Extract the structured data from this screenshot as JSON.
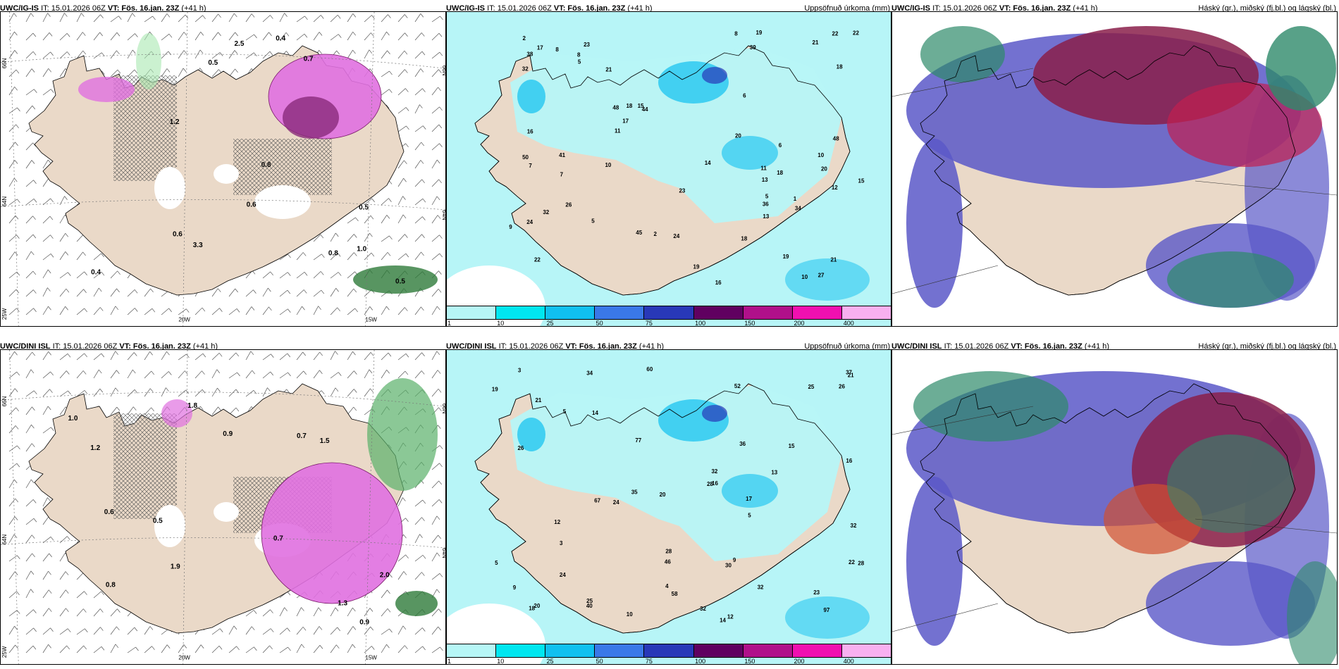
{
  "panels": [
    {
      "model": "UWC/IG-IS",
      "it": "IT: 15.01.2026 06Z",
      "vt_label": "VT:",
      "vt": "Fös. 16.jan. 23Z",
      "lead": "(+41 h)",
      "right": ""
    },
    {
      "model": "UWC/IG-IS",
      "it": "IT: 15.01.2026 06Z",
      "vt_label": "VT:",
      "vt": "Fös. 16.jan. 23Z",
      "lead": "(+41 h)",
      "right": "Uppsöfnuð úrkoma (mm)"
    },
    {
      "model": "UWC/IG-IS",
      "it": "IT: 15.01.2026 06Z",
      "vt_label": "VT:",
      "vt": "Fös. 16.jan. 23Z",
      "lead": "(+41 h)",
      "right": "Háský (gr.), miðský (fj.bl.) og lágský (bl.)"
    },
    {
      "model": "UWC/DINI ISL",
      "it": "IT: 15.01.2026 06Z",
      "vt_label": "VT:",
      "vt": "Fös. 16.jan. 23Z",
      "lead": "(+41 h)",
      "right": ""
    },
    {
      "model": "UWC/DINI ISL",
      "it": "IT: 15.01.2026 06Z",
      "vt_label": "VT:",
      "vt": "Fös. 16.jan. 23Z",
      "lead": "(+41 h)",
      "right": "Uppsöfnuð úrkoma (mm)"
    },
    {
      "model": "UWC/DINI ISL",
      "it": "IT: 15.01.2026 06Z",
      "vt_label": "VT:",
      "vt": "Fös. 16.jan. 23Z",
      "lead": "(+41 h)",
      "right": "Háský (gr.), miðský (fj.bl.) og lágský (bl.)"
    }
  ],
  "grid_labels": {
    "lat66": "66N",
    "lat64": "64N",
    "lon25": "25W",
    "lon20": "20W",
    "lon15": "15W"
  },
  "colorbar": {
    "ticks": [
      "1",
      "10",
      "25",
      "50",
      "75",
      "100",
      "150",
      "200",
      "400"
    ],
    "colors": [
      "#b6f6f6",
      "#00e6f0",
      "#10c0f0",
      "#3a78e8",
      "#2838b8",
      "#600060",
      "#b0108a",
      "#f010b0",
      "#f8b0f0"
    ]
  },
  "snow_values_top": [
    "0.4",
    "0.5",
    "0.8",
    "0.6",
    "0.5",
    "0.4",
    "1.0",
    "0.7",
    "0.8",
    "0.6",
    "0.5",
    "1.2",
    "3.3",
    "2.5"
  ],
  "snow_values_bottom": [
    "0.9",
    "0.6",
    "0.7",
    "1.0",
    "2.0",
    "1.2",
    "0.8",
    "0.5",
    "1.5",
    "0.9",
    "0.7",
    "1.3",
    "1.9",
    "1.8"
  ],
  "precip_top": [
    "13",
    "20",
    "22",
    "23",
    "44",
    "19",
    "24",
    "39",
    "48",
    "16",
    "32",
    "50",
    "38",
    "21",
    "45",
    "48",
    "23",
    "14",
    "15",
    "26",
    "22",
    "21",
    "11",
    "12",
    "8",
    "8",
    "5",
    "7",
    "5",
    "6",
    "19",
    "18",
    "17",
    "10",
    "10",
    "34",
    "36",
    "41",
    "24",
    "32",
    "18",
    "19",
    "27",
    "2",
    "1",
    "5",
    "9",
    "17",
    "20",
    "16",
    "15",
    "18",
    "22",
    "11",
    "13",
    "10",
    "6",
    "2",
    "7",
    "8",
    "18",
    "21"
  ],
  "precip_bottom": [
    "10",
    "14",
    "25",
    "32",
    "34",
    "21",
    "67",
    "97",
    "60",
    "77",
    "25",
    "58",
    "35",
    "46",
    "52",
    "28",
    "26",
    "40",
    "24",
    "19",
    "30",
    "21",
    "32",
    "18",
    "15",
    "12",
    "5",
    "3",
    "3",
    "5",
    "20",
    "12",
    "28",
    "26",
    "24",
    "17",
    "22",
    "9",
    "36",
    "23",
    "16",
    "13",
    "28",
    "20",
    "14",
    "9",
    "32",
    "32",
    "5",
    "4",
    "37",
    "16"
  ],
  "colors": {
    "land": "#ead9c8",
    "sea": "#ffffff",
    "precip_light": "#b7f5f7",
    "snow": "#e070e0",
    "high_cloud": "#8a1e4a",
    "mid_cloud": "#5a58c8",
    "low_cloud": "#2e8a6a"
  }
}
